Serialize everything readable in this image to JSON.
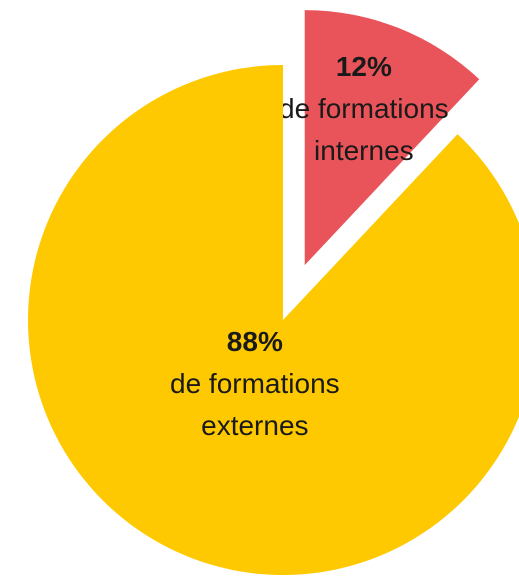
{
  "chart_data": {
    "type": "pie",
    "categories": [
      "de formations internes",
      "de formations externes"
    ],
    "values": [
      12,
      88
    ],
    "value_labels": [
      "12%",
      "88%"
    ],
    "colors": [
      "#e9545a",
      "#fec900"
    ]
  }
}
